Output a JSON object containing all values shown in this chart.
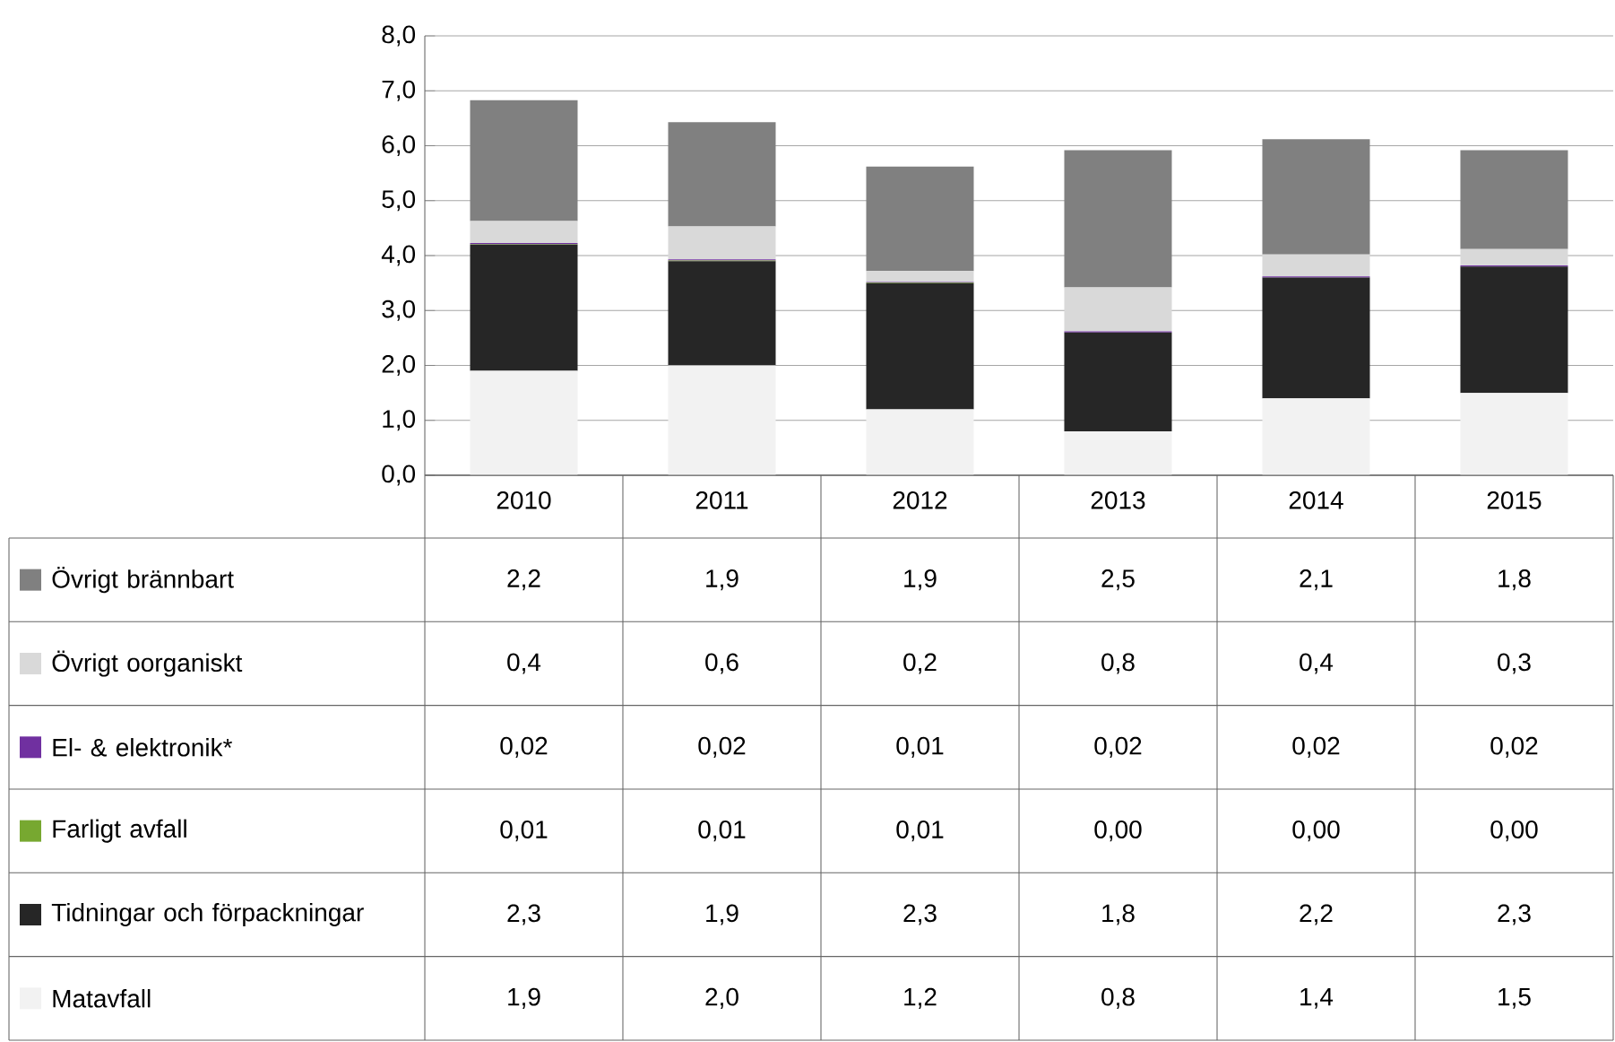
{
  "chart_data": {
    "type": "bar",
    "stacked": true,
    "categories": [
      "2010",
      "2011",
      "2012",
      "2013",
      "2014",
      "2015"
    ],
    "ylim": [
      0,
      8
    ],
    "yticks": [
      {
        "value": 0,
        "label": "0,0"
      },
      {
        "value": 1,
        "label": "1,0"
      },
      {
        "value": 2,
        "label": "2,0"
      },
      {
        "value": 3,
        "label": "3,0"
      },
      {
        "value": 4,
        "label": "4,0"
      },
      {
        "value": 5,
        "label": "5,0"
      },
      {
        "value": 6,
        "label": "6,0"
      },
      {
        "value": 7,
        "label": "7,0"
      },
      {
        "value": 8,
        "label": "8,0"
      }
    ],
    "grid": "y",
    "legend": "bottom",
    "series": [
      {
        "name": "Matavfall",
        "color": "#f2f2f2",
        "values": [
          1.9,
          2.0,
          1.2,
          0.8,
          1.4,
          1.5
        ],
        "value_labels": [
          "1,9",
          "2,0",
          "1,2",
          "0,8",
          "1,4",
          "1,5"
        ]
      },
      {
        "name": "Tidningar och förpackningar",
        "color": "#262626",
        "values": [
          2.3,
          1.9,
          2.3,
          1.8,
          2.2,
          2.3
        ],
        "value_labels": [
          "2,3",
          "1,9",
          "2,3",
          "1,8",
          "2,2",
          "2,3"
        ]
      },
      {
        "name": "Farligt avfall",
        "color": "#77a830",
        "values": [
          0.01,
          0.01,
          0.01,
          0,
          0,
          0
        ],
        "value_labels": [
          "0,01",
          "0,01",
          "0,01",
          "0,00",
          "0,00",
          "0,00"
        ]
      },
      {
        "name": "El- & elektronik*",
        "color": "#7030a0",
        "values": [
          0.02,
          0.02,
          0.01,
          0.02,
          0.02,
          0.02
        ],
        "value_labels": [
          "0,02",
          "0,02",
          "0,01",
          "0,02",
          "0,02",
          "0,02"
        ]
      },
      {
        "name": "Övrigt oorganiskt",
        "color": "#d9d9d9",
        "values": [
          0.4,
          0.6,
          0.2,
          0.8,
          0.4,
          0.3
        ],
        "value_labels": [
          "0,4",
          "0,6",
          "0,2",
          "0,8",
          "0,4",
          "0,3"
        ]
      },
      {
        "name": "Övrigt brännbart",
        "color": "#808080",
        "values": [
          2.2,
          1.9,
          1.9,
          2.5,
          2.1,
          1.8
        ],
        "value_labels": [
          "2,2",
          "1,9",
          "1,9",
          "2,5",
          "2,1",
          "1,8"
        ]
      }
    ]
  }
}
